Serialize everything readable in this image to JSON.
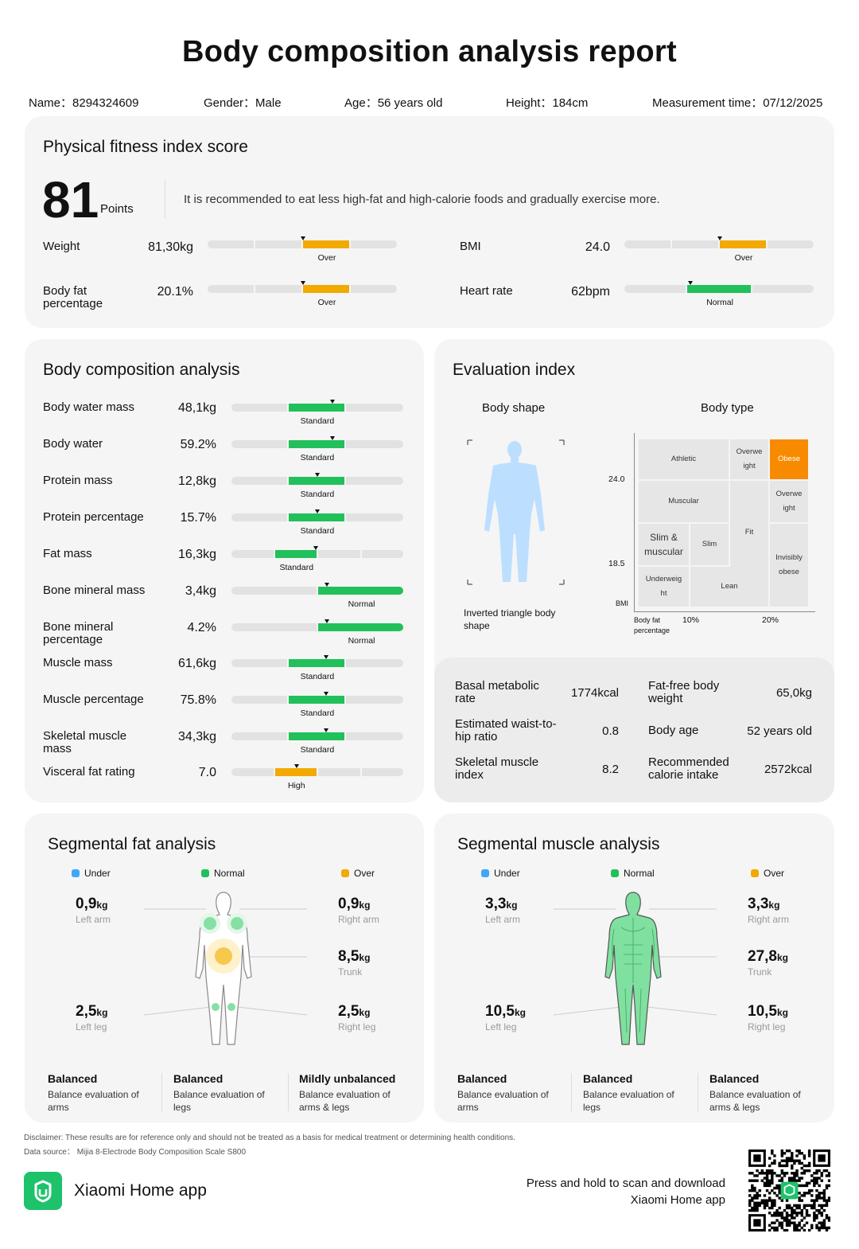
{
  "title": "Body composition analysis report",
  "info": {
    "name_label": "Name：",
    "name": "8294324609",
    "gender_label": "Gender：",
    "gender": "Male",
    "age_label": "Age：",
    "age": "56 years old",
    "height_label": "Height：",
    "height": "184cm",
    "time_label": "Measurement time：",
    "time": "07/12/2025"
  },
  "fitness": {
    "title": "Physical fitness index score",
    "score": "81",
    "points": "Points",
    "advice": "It is recommended to eat less high-fat and high-calorie foods and gradually exercise more.",
    "metrics": [
      {
        "label": "Weight",
        "value": "81,30kg",
        "status": "Over",
        "level": 0.5
      },
      {
        "label": "BMI",
        "value": "24.0",
        "status": "Over",
        "level": 0.5
      },
      {
        "label": "Body fat percentage",
        "value": "20.1%",
        "status": "Over",
        "level": 0.5
      },
      {
        "label": "Heart rate",
        "value": "62bpm",
        "status": "Normal",
        "level": 0.35
      }
    ]
  },
  "composition": {
    "title": "Body composition analysis",
    "rows": [
      {
        "label": "Body water mass",
        "value": "48,1kg",
        "status": "Standard",
        "level": 0.59
      },
      {
        "label": "Body water",
        "value": "59.2%",
        "status": "Standard",
        "level": 0.59
      },
      {
        "label": "Protein mass",
        "value": "12,8kg",
        "status": "Standard",
        "level": 0.5
      },
      {
        "label": "Protein percentage",
        "value": "15.7%",
        "status": "Standard",
        "level": 0.5
      },
      {
        "label": "Fat mass",
        "value": "16,3kg",
        "status": "Standard",
        "level": 0.5
      },
      {
        "label": "Bone mineral mass",
        "value": "3,4kg",
        "status": "Normal",
        "level": 0.55
      },
      {
        "label": "Bone mineral percentage",
        "value": "4.2%",
        "status": "Normal",
        "level": 0.55
      },
      {
        "label": "Muscle mass",
        "value": "61,6kg",
        "status": "Standard",
        "level": 0.55
      },
      {
        "label": "Muscle percentage",
        "value": "75.8%",
        "status": "Standard",
        "level": 0.55
      },
      {
        "label": "Skeletal muscle mass",
        "value": "34,3kg",
        "status": "Standard",
        "level": 0.55
      },
      {
        "label": "Visceral fat rating",
        "value": "7.0",
        "status": "High",
        "level": 0.37
      }
    ]
  },
  "evaluation": {
    "title": "Evaluation index",
    "body_shape_label": "Body shape",
    "body_type_label": "Body type",
    "shape": "Inverted triangle body shape",
    "axis": {
      "y1": "24.0",
      "y2": "18.5",
      "ylabel": "BMI",
      "xlabel": "Body fat percentage",
      "x1": "10%",
      "x2": "20%"
    },
    "cells": {
      "athletic": "Athletic",
      "overweight1": "Overwe ight",
      "obese": "Obese",
      "muscular": "Muscular",
      "overweight2": "Overwe ight",
      "fit": "Fit",
      "slim_muscular": "Slim & muscular",
      "slim": "Slim",
      "invisibly_obese": "Invisibly obese",
      "underweight": "Underweig ht",
      "lean": "Lean"
    },
    "metrics": [
      {
        "label": "Basal metabolic rate",
        "value": "1774kcal"
      },
      {
        "label": "Fat-free body weight",
        "value": "65,0kg"
      },
      {
        "label": "Estimated waist-to-hip ratio",
        "value": "0.8"
      },
      {
        "label": "Body age",
        "value": "52 years old"
      },
      {
        "label": "Skeletal muscle index",
        "value": "8.2"
      },
      {
        "label": "Recommended calorie intake",
        "value": "2572kcal"
      }
    ]
  },
  "seg_fat": {
    "title": "Segmental fat analysis",
    "legend": [
      "Under",
      "Normal",
      "Over"
    ],
    "left_arm": {
      "v": "0,9",
      "u": "kg",
      "l": "Left arm"
    },
    "right_arm": {
      "v": "0,9",
      "u": "kg",
      "l": "Right arm"
    },
    "trunk": {
      "v": "8,5",
      "u": "kg",
      "l": "Trunk"
    },
    "left_leg": {
      "v": "2,5",
      "u": "kg",
      "l": "Left leg"
    },
    "right_leg": {
      "v": "2,5",
      "u": "kg",
      "l": "Right leg"
    },
    "balance": [
      {
        "h": "Balanced",
        "t": "Balance evaluation of arms"
      },
      {
        "h": "Balanced",
        "t": "Balance evaluation of legs"
      },
      {
        "h": "Mildly unbalanced",
        "t": "Balance evaluation of arms & legs"
      }
    ]
  },
  "seg_muscle": {
    "title": "Segmental muscle analysis",
    "legend": [
      "Under",
      "Normal",
      "Over"
    ],
    "left_arm": {
      "v": "3,3",
      "u": "kg",
      "l": "Left arm"
    },
    "right_arm": {
      "v": "3,3",
      "u": "kg",
      "l": "Right arm"
    },
    "trunk": {
      "v": "27,8",
      "u": "kg",
      "l": "Trunk"
    },
    "left_leg": {
      "v": "10,5",
      "u": "kg",
      "l": "Left leg"
    },
    "right_leg": {
      "v": "10,5",
      "u": "kg",
      "l": "Right leg"
    },
    "balance": [
      {
        "h": "Balanced",
        "t": "Balance evaluation of arms"
      },
      {
        "h": "Balanced",
        "t": "Balance evaluation of legs"
      },
      {
        "h": "Balanced",
        "t": "Balance evaluation of arms & legs"
      }
    ]
  },
  "footer": {
    "disclaimer": "Disclaimer: These results are for reference only and should not be treated as a basis for medical treatment or determining health conditions.",
    "source": "Data source：  Mijia 8-Electrode Body Composition Scale S800",
    "app": "Xiaomi Home app",
    "scan1": "Press and hold to scan and download",
    "scan2": "Xiaomi Home app"
  },
  "colors": {
    "green": "#21c05a",
    "orange": "#f2a900",
    "blue": "#3fa7f5",
    "gray_bar": "#e2e2e2",
    "card": "#f5f5f5",
    "app_green": "#1ec26b"
  }
}
